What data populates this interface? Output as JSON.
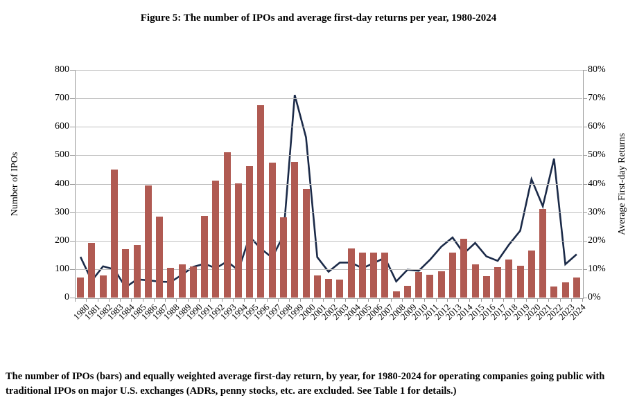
{
  "figure": {
    "title": "Figure 5: The number of IPOs and average first-day returns per year, 1980-2024",
    "footnote": "The number of IPOs (bars) and equally weighted average first-day return, by year, for 1980-2024 for operating companies going public with traditional IPOs on major U.S. exchanges (ADRs, penny stocks, etc. are excluded. See Table 1 for details.)"
  },
  "chart_data": {
    "type": "combo",
    "categories": [
      1980,
      1981,
      1982,
      1983,
      1984,
      1985,
      1986,
      1987,
      1988,
      1989,
      1990,
      1991,
      1992,
      1993,
      1994,
      1995,
      1996,
      1997,
      1998,
      1999,
      2000,
      2001,
      2002,
      2003,
      2004,
      2005,
      2006,
      2007,
      2008,
      2009,
      2010,
      2011,
      2012,
      2013,
      2014,
      2015,
      2016,
      2017,
      2018,
      2019,
      2020,
      2021,
      2022,
      2023,
      2024
    ],
    "series": [
      {
        "name": "Number of IPOs",
        "type": "bar",
        "axis": "left",
        "color": "#B05A52",
        "values": [
          71,
          192,
          77,
          451,
          171,
          186,
          393,
          285,
          105,
          116,
          110,
          286,
          412,
          510,
          402,
          462,
          677,
          474,
          281,
          477,
          381,
          79,
          66,
          63,
          173,
          159,
          157,
          159,
          21,
          41,
          91,
          81,
          93,
          158,
          206,
          118,
          75,
          106,
          134,
          112,
          165,
          311,
          38,
          54,
          71
        ]
      },
      {
        "name": "Average First-day Returns",
        "type": "line",
        "axis": "right",
        "color": "#1B2A48",
        "values": [
          14.3,
          5.9,
          11.0,
          9.9,
          3.6,
          6.4,
          6.1,
          5.6,
          5.5,
          8.0,
          10.8,
          11.9,
          10.3,
          12.7,
          9.6,
          21.4,
          17.2,
          14.0,
          21.9,
          71.2,
          56.3,
          14.2,
          9.1,
          12.3,
          12.3,
          10.3,
          12.1,
          14.0,
          5.7,
          9.8,
          9.4,
          13.3,
          17.9,
          21.1,
          15.5,
          19.2,
          14.5,
          12.9,
          18.6,
          23.5,
          41.6,
          32.1,
          48.8,
          11.7,
          15.2
        ]
      }
    ],
    "left_axis": {
      "label": "Number of IPOs",
      "min": 0,
      "max": 800,
      "tick_step": 100,
      "ticks": [
        "800",
        "700",
        "600",
        "500",
        "400",
        "300",
        "200",
        "100",
        "0"
      ]
    },
    "right_axis": {
      "label": "Average First-day Returns",
      "min": 0,
      "max": 80,
      "tick_step": 10,
      "ticks": [
        "80%",
        "70%",
        "60%",
        "50%",
        "40%",
        "30%",
        "20%",
        "10%",
        "0%"
      ]
    },
    "grid": "horizontal",
    "legend": "none",
    "colors": {
      "bar": "#B05A52",
      "line": "#1B2A48",
      "gridline": "#bdbdbd",
      "axis": "#9a9a9a"
    }
  }
}
